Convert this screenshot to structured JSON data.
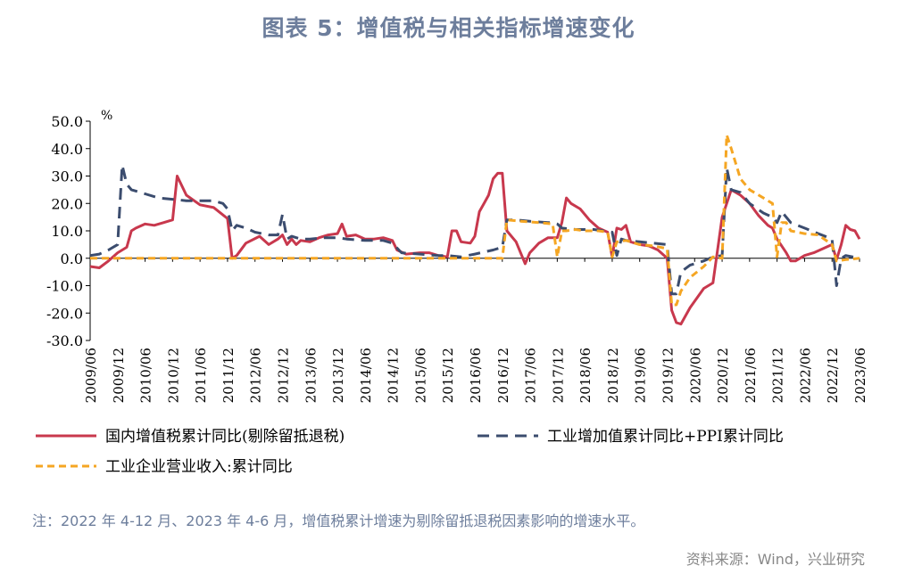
{
  "title": "图表 5：增值税与相关指标增速变化",
  "note": "注：2022 年 4-12 月、2023 年 4-6 月，增值税累计增速为剔除留抵退税因素影响的增速水平。",
  "source": "资料来源：Wind，兴业研究",
  "chart_data": {
    "type": "line",
    "ylabel": "%",
    "ylim": [
      -30,
      50
    ],
    "yticks": [
      "50.0",
      "40.0",
      "30.0",
      "20.0",
      "10.0",
      "0.0",
      "-10.0",
      "-20.0",
      "-30.0"
    ],
    "xticks": [
      "2009/06",
      "2009/12",
      "2010/06",
      "2010/12",
      "2011/06",
      "2011/12",
      "2012/06",
      "2012/12",
      "2013/06",
      "2013/12",
      "2014/06",
      "2014/12",
      "2015/06",
      "2015/12",
      "2016/06",
      "2016/12",
      "2017/06",
      "2017/12",
      "2018/06",
      "2018/12",
      "2019/06",
      "2019/12",
      "2020/06",
      "2020/12",
      "2021/06",
      "2021/12",
      "2022/06",
      "2022/12",
      "2023/06"
    ],
    "x_start": "2009/06",
    "x_end": "2023/06",
    "legend": [
      "国内增值税累计同比(剔除留抵退税)",
      "工业增加值累计同比+PPI累计同比",
      "工业企业营业收入:累计同比"
    ],
    "series": [
      {
        "name": "国内增值税累计同比(剔除留抵退税)",
        "color": "#c8384d",
        "dash": "solid",
        "points": [
          [
            "2009/06",
            -3
          ],
          [
            "2009/08",
            -3.5
          ],
          [
            "2009/10",
            -1
          ],
          [
            "2009/12",
            2
          ],
          [
            "2010/02",
            4
          ],
          [
            "2010/03",
            10
          ],
          [
            "2010/04",
            11
          ],
          [
            "2010/06",
            12.5
          ],
          [
            "2010/08",
            12
          ],
          [
            "2010/10",
            13
          ],
          [
            "2010/12",
            14
          ],
          [
            "2011/01",
            30
          ],
          [
            "2011/03",
            23
          ],
          [
            "2011/06",
            19.5
          ],
          [
            "2011/09",
            18.5
          ],
          [
            "2011/12",
            14.5
          ],
          [
            "2012/01",
            0
          ],
          [
            "2012/02",
            1
          ],
          [
            "2012/04",
            5.5
          ],
          [
            "2012/07",
            8
          ],
          [
            "2012/09",
            5
          ],
          [
            "2012/11",
            7
          ],
          [
            "2012/12",
            8.5
          ],
          [
            "2013/01",
            5
          ],
          [
            "2013/02",
            7
          ],
          [
            "2013/03",
            5
          ],
          [
            "2013/04",
            6.5
          ],
          [
            "2013/06",
            6
          ],
          [
            "2013/08",
            7.5
          ],
          [
            "2013/10",
            8.5
          ],
          [
            "2013/12",
            9
          ],
          [
            "2014/01",
            12.5
          ],
          [
            "2014/02",
            8
          ],
          [
            "2014/04",
            8.5
          ],
          [
            "2014/06",
            7
          ],
          [
            "2014/08",
            7
          ],
          [
            "2014/10",
            7.5
          ],
          [
            "2014/12",
            6.5
          ],
          [
            "2015/01",
            3
          ],
          [
            "2015/03",
            1.5
          ],
          [
            "2015/06",
            2
          ],
          [
            "2015/08",
            2
          ],
          [
            "2015/10",
            1
          ],
          [
            "2015/12",
            0.5
          ],
          [
            "2016/01",
            10
          ],
          [
            "2016/02",
            10
          ],
          [
            "2016/03",
            6
          ],
          [
            "2016/05",
            5.5
          ],
          [
            "2016/06",
            8
          ],
          [
            "2016/07",
            17
          ],
          [
            "2016/08",
            20
          ],
          [
            "2016/09",
            23
          ],
          [
            "2016/10",
            29
          ],
          [
            "2016/11",
            31
          ],
          [
            "2016/12",
            31
          ],
          [
            "2017/01",
            10
          ],
          [
            "2017/03",
            6
          ],
          [
            "2017/05",
            -2
          ],
          [
            "2017/06",
            2
          ],
          [
            "2017/08",
            5.5
          ],
          [
            "2017/10",
            7.5
          ],
          [
            "2017/12",
            7.5
          ],
          [
            "2018/01",
            13
          ],
          [
            "2018/02",
            22
          ],
          [
            "2018/03",
            20
          ],
          [
            "2018/05",
            18
          ],
          [
            "2018/07",
            14
          ],
          [
            "2018/09",
            11
          ],
          [
            "2018/11",
            9.5
          ],
          [
            "2018/12",
            0.5
          ],
          [
            "2019/01",
            11
          ],
          [
            "2019/02",
            10.5
          ],
          [
            "2019/03",
            12
          ],
          [
            "2019/04",
            6
          ],
          [
            "2019/06",
            5
          ],
          [
            "2019/08",
            4.5
          ],
          [
            "2019/10",
            3
          ],
          [
            "2019/12",
            0
          ],
          [
            "2020/01",
            -19
          ],
          [
            "2020/02",
            -23.5
          ],
          [
            "2020/03",
            -24
          ],
          [
            "2020/05",
            -18
          ],
          [
            "2020/08",
            -11
          ],
          [
            "2020/10",
            -9
          ],
          [
            "2020/12",
            15
          ],
          [
            "2021/02",
            25
          ],
          [
            "2021/04",
            23
          ],
          [
            "2021/06",
            20
          ],
          [
            "2021/08",
            15.5
          ],
          [
            "2021/10",
            12
          ],
          [
            "2021/11",
            11
          ],
          [
            "2021/12",
            7
          ],
          [
            "2022/02",
            2
          ],
          [
            "2022/03",
            -1
          ],
          [
            "2022/04",
            -1
          ],
          [
            "2022/06",
            1
          ],
          [
            "2022/08",
            2
          ],
          [
            "2022/10",
            3.5
          ],
          [
            "2022/12",
            5
          ],
          [
            "2023/01",
            -0.5
          ],
          [
            "2023/02",
            5
          ],
          [
            "2023/03",
            12
          ],
          [
            "2023/04",
            10.5
          ],
          [
            "2023/05",
            10
          ],
          [
            "2023/06",
            7
          ]
        ]
      },
      {
        "name": "工业增加值累计同比+PPI累计同比",
        "color": "#3b4c6e",
        "dash": "long",
        "points": [
          [
            "2009/06",
            1
          ],
          [
            "2009/08",
            1.5
          ],
          [
            "2009/10",
            3
          ],
          [
            "2009/12",
            5
          ],
          [
            "2010/01",
            34
          ],
          [
            "2010/02",
            27
          ],
          [
            "2010/03",
            25
          ],
          [
            "2010/06",
            23.5
          ],
          [
            "2010/09",
            22
          ],
          [
            "2010/12",
            21.5
          ],
          [
            "2011/03",
            21
          ],
          [
            "2011/06",
            21
          ],
          [
            "2011/09",
            21
          ],
          [
            "2011/11",
            20
          ],
          [
            "2011/12",
            18
          ],
          [
            "2012/01",
            10
          ],
          [
            "2012/02",
            12
          ],
          [
            "2012/04",
            11
          ],
          [
            "2012/06",
            9.5
          ],
          [
            "2012/09",
            8.5
          ],
          [
            "2012/11",
            8.5
          ],
          [
            "2012/12",
            16
          ],
          [
            "2013/01",
            7
          ],
          [
            "2013/02",
            8
          ],
          [
            "2013/04",
            7
          ],
          [
            "2013/06",
            7
          ],
          [
            "2013/09",
            7.5
          ],
          [
            "2013/12",
            7.5
          ],
          [
            "2014/02",
            7
          ],
          [
            "2014/06",
            6.5
          ],
          [
            "2014/10",
            6.5
          ],
          [
            "2014/12",
            5.5
          ],
          [
            "2015/02",
            2
          ],
          [
            "2015/06",
            1.5
          ],
          [
            "2015/10",
            1
          ],
          [
            "2015/12",
            1
          ],
          [
            "2016/03",
            0.5
          ],
          [
            "2016/06",
            1.5
          ],
          [
            "2016/10",
            3
          ],
          [
            "2016/12",
            4
          ],
          [
            "2017/01",
            14
          ],
          [
            "2017/03",
            14
          ],
          [
            "2017/06",
            13.5
          ],
          [
            "2017/10",
            13
          ],
          [
            "2017/11",
            13
          ],
          [
            "2017/12",
            12.5
          ],
          [
            "2018/01",
            11
          ],
          [
            "2018/04",
            10.5
          ],
          [
            "2018/08",
            10.5
          ],
          [
            "2018/12",
            9.5
          ],
          [
            "2019/01",
            1
          ],
          [
            "2019/02",
            7
          ],
          [
            "2019/03",
            6.5
          ],
          [
            "2019/06",
            6
          ],
          [
            "2019/09",
            5.5
          ],
          [
            "2019/12",
            5
          ],
          [
            "2020/01",
            -13
          ],
          [
            "2020/02",
            -13
          ],
          [
            "2020/03",
            -5
          ],
          [
            "2020/05",
            -2.5
          ],
          [
            "2020/08",
            -1
          ],
          [
            "2020/10",
            0.5
          ],
          [
            "2020/12",
            1
          ],
          [
            "2021/01",
            33
          ],
          [
            "2021/02",
            25
          ],
          [
            "2021/04",
            24
          ],
          [
            "2021/06",
            20
          ],
          [
            "2021/09",
            16.5
          ],
          [
            "2021/11",
            15
          ],
          [
            "2021/12",
            13
          ],
          [
            "2022/01",
            17
          ],
          [
            "2022/03",
            13
          ],
          [
            "2022/06",
            11
          ],
          [
            "2022/09",
            9
          ],
          [
            "2022/12",
            7
          ],
          [
            "2023/01",
            -10
          ],
          [
            "2023/02",
            0
          ],
          [
            "2023/03",
            1
          ],
          [
            "2023/06",
            0
          ]
        ]
      },
      {
        "name": "工业企业营业收入:累计同比",
        "color": "#f5a623",
        "dash": "short",
        "points": [
          [
            "2009/06",
            0
          ],
          [
            "2016/06",
            0
          ],
          [
            "2016/12",
            0
          ],
          [
            "2017/01",
            14
          ],
          [
            "2017/04",
            13.5
          ],
          [
            "2017/08",
            13
          ],
          [
            "2017/11",
            12.5
          ],
          [
            "2017/12",
            0.5
          ],
          [
            "2018/01",
            10
          ],
          [
            "2018/02",
            10
          ],
          [
            "2018/04",
            10.5
          ],
          [
            "2018/06",
            10
          ],
          [
            "2018/09",
            10
          ],
          [
            "2018/11",
            9.5
          ],
          [
            "2018/12",
            0.5
          ],
          [
            "2019/01",
            6
          ],
          [
            "2019/03",
            6.5
          ],
          [
            "2019/06",
            5
          ],
          [
            "2019/09",
            4.5
          ],
          [
            "2019/12",
            3.5
          ],
          [
            "2020/01",
            -17
          ],
          [
            "2020/02",
            -17
          ],
          [
            "2020/03",
            -12
          ],
          [
            "2020/05",
            -7
          ],
          [
            "2020/08",
            -3
          ],
          [
            "2020/10",
            0.5
          ],
          [
            "2020/12",
            0
          ],
          [
            "2021/01",
            45
          ],
          [
            "2021/02",
            40
          ],
          [
            "2021/04",
            29
          ],
          [
            "2021/06",
            25
          ],
          [
            "2021/09",
            22
          ],
          [
            "2021/11",
            20
          ],
          [
            "2021/12",
            0.5
          ],
          [
            "2022/01",
            13
          ],
          [
            "2022/02",
            13
          ],
          [
            "2022/03",
            10
          ],
          [
            "2022/06",
            9
          ],
          [
            "2022/09",
            8.5
          ],
          [
            "2022/12",
            5
          ],
          [
            "2023/01",
            -1
          ],
          [
            "2023/03",
            -0.5
          ],
          [
            "2023/06",
            0
          ]
        ]
      }
    ]
  }
}
